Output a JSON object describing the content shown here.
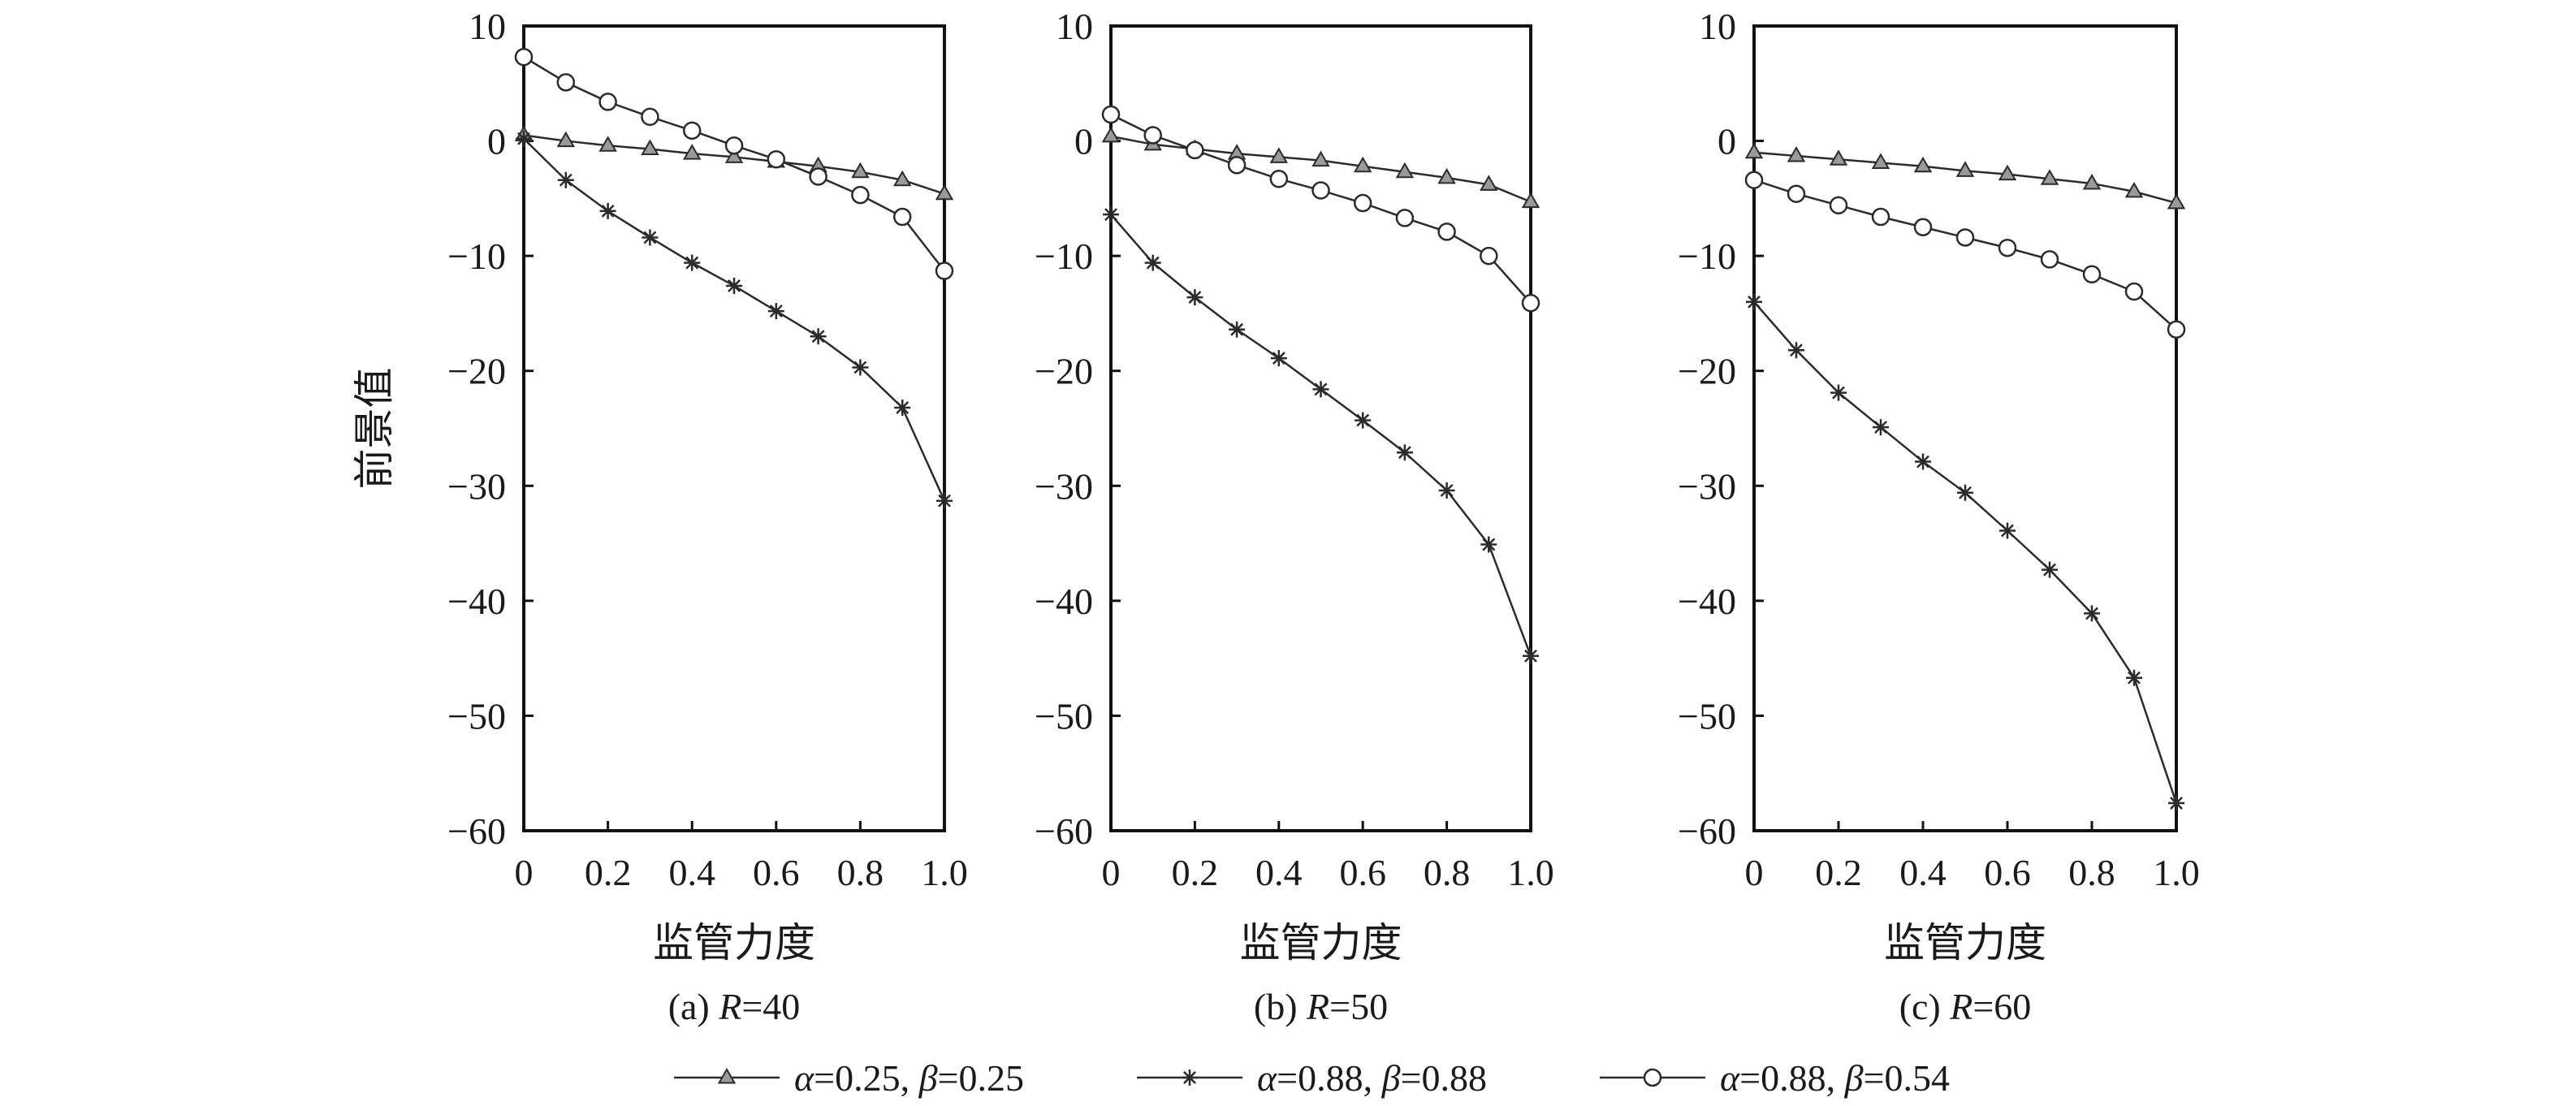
{
  "chart_data": [
    {
      "type": "line",
      "caption": {
        "prefix": "(a) ",
        "var": "R",
        "rest": "=40"
      },
      "xlabel": "监管力度",
      "ylabel": "前景值",
      "xlim": [
        0,
        1.0
      ],
      "ylim": [
        -60,
        10
      ],
      "x_ticks": [
        0,
        0.2,
        0.4,
        0.6,
        0.8,
        1.0
      ],
      "x_tick_labels": [
        "0",
        "0.2",
        "0.4",
        "0.6",
        "0.8",
        "1.0"
      ],
      "y_ticks": [
        10,
        0,
        -10,
        -20,
        -30,
        -40,
        -50,
        -60
      ],
      "y_tick_labels": [
        "10",
        "0",
        "−10",
        "−20",
        "−30",
        "−40",
        "−50",
        "−60"
      ],
      "x": [
        0,
        0.1,
        0.2,
        0.3,
        0.4,
        0.5,
        0.6,
        0.7,
        0.8,
        0.9,
        1.0
      ],
      "series": [
        {
          "marker": "triangle",
          "values": [
            0.5,
            0.0,
            -0.4,
            -0.7,
            -1.1,
            -1.4,
            -1.8,
            -2.2,
            -2.7,
            -3.4,
            -4.6
          ]
        },
        {
          "marker": "star",
          "values": [
            0.2,
            -3.4,
            -6.1,
            -8.4,
            -10.6,
            -12.6,
            -14.8,
            -17.0,
            -19.7,
            -23.2,
            -31.3
          ]
        },
        {
          "marker": "circle",
          "values": [
            7.3,
            5.1,
            3.4,
            2.1,
            0.9,
            -0.4,
            -1.6,
            -3.1,
            -4.7,
            -6.6,
            -11.3
          ]
        }
      ]
    },
    {
      "type": "line",
      "caption": {
        "prefix": "(b) ",
        "var": "R",
        "rest": "=50"
      },
      "xlabel": "监管力度",
      "ylabel": "",
      "xlim": [
        0,
        1.0
      ],
      "ylim": [
        -60,
        10
      ],
      "x_ticks": [
        0,
        0.2,
        0.4,
        0.6,
        0.8,
        1.0
      ],
      "x_tick_labels": [
        "0",
        "0.2",
        "0.4",
        "0.6",
        "0.8",
        "1.0"
      ],
      "y_ticks": [
        10,
        0,
        -10,
        -20,
        -30,
        -40,
        -50,
        -60
      ],
      "y_tick_labels": [
        "10",
        "0",
        "−10",
        "−20",
        "−30",
        "−40",
        "−50",
        "−60"
      ],
      "x": [
        0,
        0.1,
        0.2,
        0.3,
        0.4,
        0.5,
        0.6,
        0.7,
        0.8,
        0.9,
        1.0
      ],
      "series": [
        {
          "marker": "triangle",
          "values": [
            0.4,
            -0.3,
            -0.7,
            -1.1,
            -1.4,
            -1.7,
            -2.2,
            -2.7,
            -3.2,
            -3.8,
            -5.3
          ]
        },
        {
          "marker": "star",
          "values": [
            -6.4,
            -10.6,
            -13.6,
            -16.4,
            -18.9,
            -21.6,
            -24.3,
            -27.1,
            -30.4,
            -35.1,
            -44.8
          ]
        },
        {
          "marker": "circle",
          "values": [
            2.3,
            0.5,
            -0.8,
            -2.1,
            -3.3,
            -4.3,
            -5.4,
            -6.7,
            -7.9,
            -10.0,
            -14.1
          ]
        }
      ]
    },
    {
      "type": "line",
      "caption": {
        "prefix": "(c) ",
        "var": "R",
        "rest": "=60"
      },
      "xlabel": "监管力度",
      "ylabel": "",
      "xlim": [
        0,
        1.0
      ],
      "ylim": [
        -60,
        10
      ],
      "x_ticks": [
        0,
        0.2,
        0.4,
        0.6,
        0.8,
        1.0
      ],
      "x_tick_labels": [
        "0",
        "0.2",
        "0.4",
        "0.6",
        "0.8",
        "1.0"
      ],
      "y_ticks": [
        10,
        0,
        -10,
        -20,
        -30,
        -40,
        -50,
        -60
      ],
      "y_tick_labels": [
        "10",
        "0",
        "−10",
        "−20",
        "−30",
        "−40",
        "−50",
        "−60"
      ],
      "x": [
        0,
        0.1,
        0.2,
        0.3,
        0.4,
        0.5,
        0.6,
        0.7,
        0.8,
        0.9,
        1.0
      ],
      "series": [
        {
          "marker": "triangle",
          "values": [
            -1.0,
            -1.3,
            -1.6,
            -1.9,
            -2.2,
            -2.6,
            -2.9,
            -3.3,
            -3.7,
            -4.4,
            -5.4
          ]
        },
        {
          "marker": "star",
          "values": [
            -14.0,
            -18.2,
            -21.9,
            -24.9,
            -27.9,
            -30.6,
            -33.9,
            -37.3,
            -41.1,
            -46.7,
            -57.6
          ]
        },
        {
          "marker": "circle",
          "values": [
            -3.4,
            -4.6,
            -5.6,
            -6.6,
            -7.5,
            -8.4,
            -9.3,
            -10.3,
            -11.6,
            -13.1,
            -16.4
          ]
        }
      ]
    }
  ],
  "legend": [
    {
      "marker": "triangle",
      "a_var": "α",
      "a_val": "=0.25, ",
      "b_var": "β",
      "b_val": "=0.25"
    },
    {
      "marker": "star",
      "a_var": "α",
      "a_val": "=0.88, ",
      "b_var": "β",
      "b_val": "=0.88"
    },
    {
      "marker": "circle",
      "a_var": "α",
      "a_val": "=0.88, ",
      "b_var": "β",
      "b_val": "=0.54"
    }
  ],
  "style": {
    "line_color": "#2b2b2b",
    "axis_color": "#111111",
    "marker_fill": "#ffffff"
  }
}
